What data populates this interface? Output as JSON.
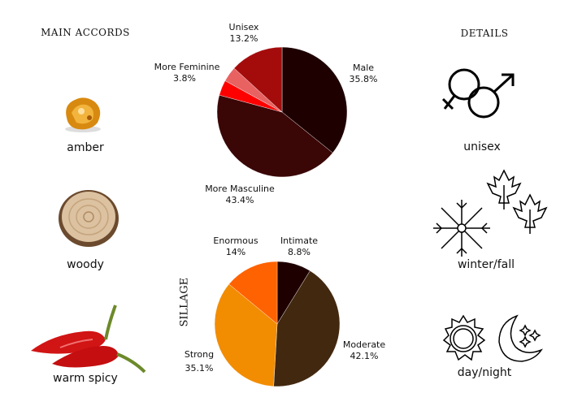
{
  "main_accords": {
    "title": "MAIN ACCORDS",
    "items": [
      {
        "label": "amber",
        "icon": "amber-image"
      },
      {
        "label": "woody",
        "icon": "wood-slice-image"
      },
      {
        "label": "warm spicy",
        "icon": "chili-pepper-image"
      }
    ]
  },
  "details": {
    "title": "DETAILS",
    "items": [
      {
        "label": "unisex",
        "icon": "gender-symbols-icon"
      },
      {
        "label": "winter/fall",
        "icon": "snowflake-leaves-icon"
      },
      {
        "label": "day/night",
        "icon": "sun-moon-icon"
      }
    ]
  },
  "chart_data": [
    {
      "type": "pie",
      "title": "",
      "slices": [
        {
          "name": "Male",
          "label": "Male",
          "value_label": "35.8%",
          "value": 35.8,
          "color": "#1e0000"
        },
        {
          "name": "More Masculine",
          "label": "More Masculine",
          "value_label": "43.4%",
          "value": 43.4,
          "color": "#3a0606"
        },
        {
          "name": "",
          "label": "",
          "value_label": "",
          "value": 3.8,
          "color": "#ff0000"
        },
        {
          "name": "More Feminine",
          "label": "More Feminine",
          "value_label": "3.8%",
          "value": 3.8,
          "color": "#e86262"
        },
        {
          "name": "Unisex",
          "label": "Unisex",
          "value_label": "13.2%",
          "value": 13.2,
          "color": "#a40c0c"
        }
      ]
    },
    {
      "type": "pie",
      "title": "SILLAGE",
      "slices": [
        {
          "name": "Intimate",
          "label": "Intimate",
          "value_label": "8.8%",
          "value": 8.8,
          "color": "#1e0000"
        },
        {
          "name": "Moderate",
          "label": "Moderate",
          "value_label": "42.1%",
          "value": 42.1,
          "color": "#42280f"
        },
        {
          "name": "Strong",
          "label": "Strong",
          "value_label": "35.1%",
          "value": 35.1,
          "color": "#f28c00"
        },
        {
          "name": "Enormous",
          "label": "Enormous",
          "value_label": "14%",
          "value": 14,
          "color": "#ff6200"
        }
      ]
    }
  ]
}
